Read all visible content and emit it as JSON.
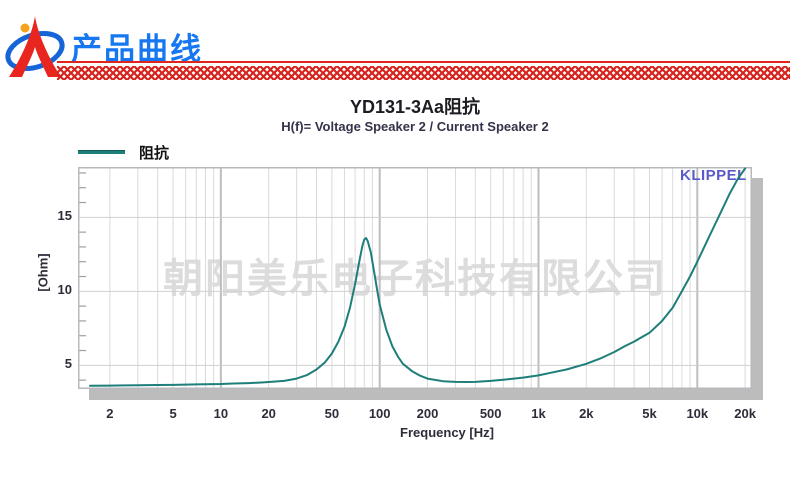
{
  "header": {
    "title": "产品曲线"
  },
  "chart": {
    "title": "YD131-3Aa阻抗",
    "subtitle": "H(f)= Voltage Speaker 2 / Current Speaker 2",
    "legend_label": "阻抗",
    "ylabel": "[Ohm]",
    "xlabel": "Frequency [Hz]",
    "watermark": "朝阳美乐电子科技有限公司",
    "brand_mark": "KLIPPEL"
  },
  "colors": {
    "curve": "#1e7e79",
    "brand_blue": "#1677f0",
    "checker_red": "#d8231d",
    "klippel_purple": "#5b59c9",
    "watermark_gray": "#dcdcdc",
    "grid_minor": "#dadada",
    "grid_decade": "#bdbdbd",
    "plot_border": "#b6babe"
  },
  "chart_data": {
    "type": "line",
    "title": "YD131-3Aa阻抗",
    "xlabel": "Frequency [Hz]",
    "ylabel": "[Ohm]",
    "x_scale": "log",
    "xlim": [
      1.26,
      22100
    ],
    "ylim": [
      3.4,
      18.4
    ],
    "x_major_ticks": [
      {
        "label": "2",
        "value": 2
      },
      {
        "label": "5",
        "value": 5
      },
      {
        "label": "10",
        "value": 10
      },
      {
        "label": "20",
        "value": 20
      },
      {
        "label": "50",
        "value": 50
      },
      {
        "label": "100",
        "value": 100
      },
      {
        "label": "200",
        "value": 200
      },
      {
        "label": "500",
        "value": 500
      },
      {
        "label": "1k",
        "value": 1000
      },
      {
        "label": "2k",
        "value": 2000
      },
      {
        "label": "5k",
        "value": 5000
      },
      {
        "label": "10k",
        "value": 10000
      },
      {
        "label": "20k",
        "value": 20000
      }
    ],
    "y_major_ticks": [
      5,
      10,
      15
    ],
    "y_minor_step": 1,
    "decade_lines": [
      10,
      100,
      1000,
      10000
    ],
    "grid": true,
    "legend_position": "top-left",
    "series": [
      {
        "name": "阻抗",
        "color": "#1e7e79",
        "x": [
          1.5,
          2,
          2.5,
          3,
          4,
          5,
          6,
          7,
          8,
          9,
          10,
          12,
          15,
          18,
          20,
          25,
          30,
          35,
          40,
          45,
          50,
          55,
          60,
          65,
          70,
          75,
          78,
          80,
          82,
          84,
          88,
          92,
          96,
          100,
          110,
          120,
          130,
          140,
          160,
          180,
          200,
          250,
          300,
          350,
          400,
          500,
          600,
          700,
          800,
          1000,
          1200,
          1500,
          2000,
          2500,
          3000,
          3500,
          4000,
          5000,
          6000,
          7000,
          8000,
          9000,
          10000,
          12000,
          14000,
          16000,
          18000,
          20000
        ],
        "y": [
          3.62,
          3.63,
          3.64,
          3.65,
          3.67,
          3.68,
          3.7,
          3.71,
          3.72,
          3.73,
          3.74,
          3.77,
          3.8,
          3.84,
          3.87,
          3.95,
          4.1,
          4.35,
          4.72,
          5.18,
          5.8,
          6.6,
          7.6,
          8.9,
          10.5,
          12.2,
          13.1,
          13.5,
          13.6,
          13.4,
          12.6,
          11.4,
          10.2,
          9.1,
          7.4,
          6.3,
          5.6,
          5.1,
          4.6,
          4.3,
          4.1,
          3.93,
          3.88,
          3.87,
          3.88,
          3.95,
          4.03,
          4.1,
          4.17,
          4.32,
          4.5,
          4.72,
          5.1,
          5.5,
          5.9,
          6.3,
          6.6,
          7.2,
          8.0,
          8.9,
          10.0,
          11.0,
          12.0,
          13.8,
          15.3,
          16.6,
          17.6,
          18.3
        ]
      }
    ],
    "annotations": {
      "resonance_peak": {
        "frequency_hz": 82,
        "impedance_ohm": 13.6
      }
    }
  }
}
